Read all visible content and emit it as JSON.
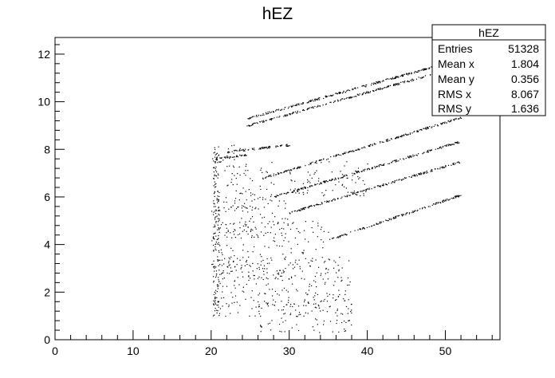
{
  "chart_data": {
    "type": "scatter",
    "title": "hEZ",
    "xlabel": "",
    "ylabel": "",
    "xlim": [
      0,
      57
    ],
    "ylim": [
      0,
      12.7
    ],
    "xticks": [
      0,
      10,
      20,
      30,
      40,
      50
    ],
    "yticks": [
      0,
      2,
      4,
      6,
      8,
      10,
      12
    ],
    "grid": false,
    "legend": "none",
    "stats_box": {
      "title": "hEZ",
      "placement": "top-right",
      "rows": [
        {
          "label": "Entries",
          "value": "51328"
        },
        {
          "label": "Mean x",
          "value": "1.804"
        },
        {
          "label": "Mean y",
          "value": "0.356"
        },
        {
          "label": "RMS x",
          "value": "8.067"
        },
        {
          "label": "RMS y",
          "value": "1.636"
        }
      ]
    },
    "bands": [
      {
        "x": [
          24.5,
          53
        ],
        "y": [
          9.3,
          11.9
        ]
      },
      {
        "x": [
          24.5,
          53
        ],
        "y": [
          9.0,
          11.6
        ]
      },
      {
        "x": [
          26.5,
          52
        ],
        "y": [
          6.8,
          9.35
        ]
      },
      {
        "x": [
          27.8,
          52
        ],
        "y": [
          6.0,
          8.35
        ]
      },
      {
        "x": [
          30.0,
          52
        ],
        "y": [
          5.35,
          7.5
        ]
      },
      {
        "x": [
          35.0,
          52
        ],
        "y": [
          4.2,
          6.1
        ]
      },
      {
        "x": [
          20.5,
          24.5
        ],
        "y": [
          7.6,
          7.8
        ]
      },
      {
        "x": [
          22.0,
          30.0
        ],
        "y": [
          7.9,
          8.2
        ]
      }
    ],
    "clusters": [
      {
        "x": [
          20.0,
          24.5
        ],
        "y": [
          7.0,
          8.2
        ]
      },
      {
        "x": [
          20.0,
          30.0
        ],
        "y": [
          4.3,
          6.0
        ]
      },
      {
        "x": [
          20.0,
          35.0
        ],
        "y": [
          2.5,
          5.0
        ]
      },
      {
        "x": [
          20.0,
          38.0
        ],
        "y": [
          1.0,
          3.5
        ]
      },
      {
        "x": [
          26.0,
          38.0
        ],
        "y": [
          0.3,
          2.0
        ]
      },
      {
        "x": [
          30.0,
          40.0
        ],
        "y": [
          6.0,
          7.5
        ]
      },
      {
        "x": [
          22.0,
          28.0
        ],
        "y": [
          5.5,
          7.5
        ]
      }
    ],
    "colors": {
      "points": "#000000",
      "frame": "#000000",
      "background": "#ffffff"
    }
  }
}
